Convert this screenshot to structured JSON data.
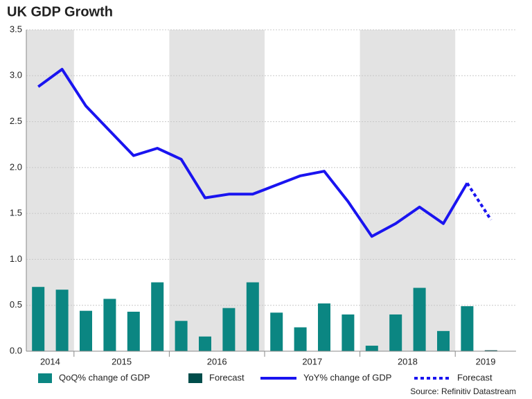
{
  "chart_data": {
    "type": "combo",
    "title": "UK GDP Growth",
    "source": "Source: Refinitiv Datastream",
    "categories": [
      null,
      null,
      null,
      null,
      null,
      null,
      null,
      null,
      null,
      null,
      null,
      null,
      null,
      null,
      null,
      null,
      null,
      null,
      null,
      null
    ],
    "years": [
      "2014",
      "2015",
      "2016",
      "2017",
      "2018",
      "2019"
    ],
    "year_quarters": [
      2,
      4,
      4,
      4,
      4,
      2
    ],
    "shade_alternate_years": true,
    "ylim": [
      0,
      3.5
    ],
    "yticks": [
      {
        "value": 0,
        "label": "0.0"
      },
      {
        "value": 0.5,
        "label": "0.5"
      },
      {
        "value": 1,
        "label": "1.0"
      },
      {
        "value": 1.5,
        "label": "1.5"
      },
      {
        "value": 2,
        "label": "2.0"
      },
      {
        "value": 2.5,
        "label": "2.5"
      },
      {
        "value": 3,
        "label": "3.0"
      },
      {
        "value": 3.5,
        "label": "3.5"
      }
    ],
    "grid": true,
    "legend": "bottom",
    "series": [
      {
        "name": "QoQ% change of GDP",
        "type": "bar",
        "color": "#0b8682",
        "values": [
          0.7,
          0.67,
          0.44,
          0.57,
          0.43,
          0.75,
          0.33,
          0.16,
          0.47,
          0.75,
          0.42,
          0.26,
          0.52,
          0.4,
          0.06,
          0.4,
          0.69,
          0.22,
          0.49,
          null
        ]
      },
      {
        "name": "Forecast",
        "type": "bar",
        "color": "#004d4b",
        "values": [
          null,
          null,
          null,
          null,
          null,
          null,
          null,
          null,
          null,
          null,
          null,
          null,
          null,
          null,
          null,
          null,
          null,
          null,
          null,
          0.01
        ]
      },
      {
        "name": "YoY% change of GDP",
        "type": "line",
        "color": "#1a14f0",
        "values": [
          2.88,
          3.07,
          2.67,
          2.4,
          2.13,
          2.21,
          2.09,
          1.67,
          1.71,
          1.71,
          1.81,
          1.91,
          1.96,
          1.63,
          1.25,
          1.39,
          1.57,
          1.39,
          1.83,
          null
        ]
      },
      {
        "name": "Forecast",
        "type": "line",
        "dashed": true,
        "color": "#1a14f0",
        "values": [
          null,
          null,
          null,
          null,
          null,
          null,
          null,
          null,
          null,
          null,
          null,
          null,
          null,
          null,
          null,
          null,
          null,
          null,
          1.83,
          1.43
        ]
      }
    ]
  }
}
